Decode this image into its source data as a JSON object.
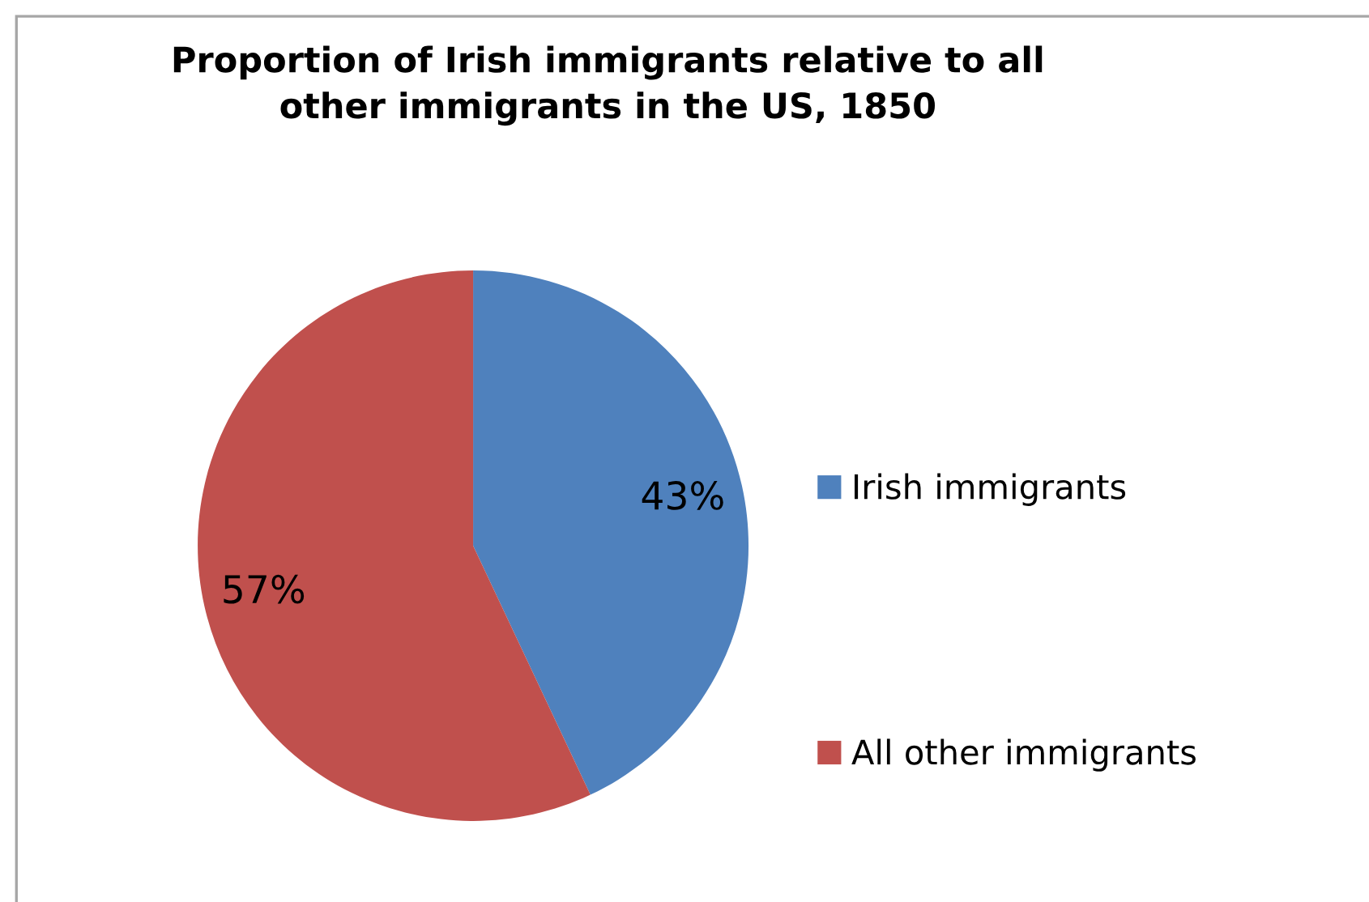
{
  "chart_data": {
    "type": "pie",
    "title": "Proportion of Irish immigrants relative to all\nother immigrants in the US, 1850",
    "categories": [
      "Irish immigrants",
      "All other immigrants"
    ],
    "values": [
      43,
      57
    ],
    "colors": [
      "#4f81bd",
      "#c0504d"
    ],
    "value_labels": [
      "43%",
      "57%"
    ],
    "legend": "right"
  }
}
